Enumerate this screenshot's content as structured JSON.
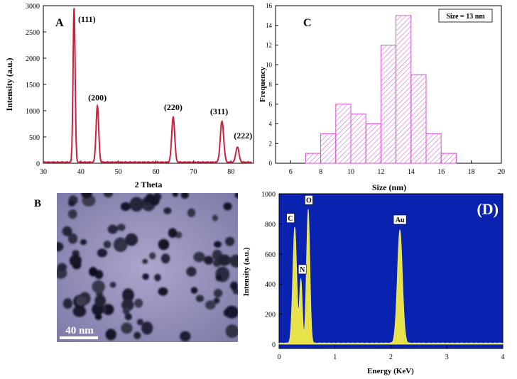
{
  "chart_data": [
    {
      "type": "line",
      "panel_label": "A",
      "xlabel": "2 Theta",
      "ylabel": "Intensity (a.u.)",
      "xlim": [
        30,
        86
      ],
      "ylim": [
        0,
        3000
      ],
      "xticks": [
        30,
        40,
        50,
        60,
        70,
        80
      ],
      "yticks": [
        0,
        500,
        1000,
        1500,
        2000,
        2500,
        3000
      ],
      "color": "#cc1f3c",
      "peaks": [
        {
          "x": 38.2,
          "y": 2960,
          "label": "(111)"
        },
        {
          "x": 44.4,
          "y": 1090,
          "label": "(200)"
        },
        {
          "x": 64.6,
          "y": 880,
          "label": "(220)"
        },
        {
          "x": 77.6,
          "y": 800,
          "label": "(311)"
        },
        {
          "x": 81.7,
          "y": 310,
          "label": "(222)"
        }
      ],
      "baseline": 20
    },
    {
      "type": "bar",
      "panel_label": "C",
      "xlabel": "Size (nm)",
      "ylabel": "Frequency",
      "legend": "Size = 13 nm",
      "xlim": [
        5,
        20
      ],
      "ylim": [
        0,
        16
      ],
      "xticks": [
        6,
        8,
        10,
        12,
        14,
        16,
        18,
        20
      ],
      "yticks": [
        0,
        2,
        4,
        6,
        8,
        10,
        12,
        14,
        16
      ],
      "bin_width": 1,
      "bins": [
        {
          "center": 7.5,
          "value": 1
        },
        {
          "center": 8.5,
          "value": 3
        },
        {
          "center": 9.5,
          "value": 6
        },
        {
          "center": 10.5,
          "value": 5
        },
        {
          "center": 11.5,
          "value": 4
        },
        {
          "center": 12.5,
          "value": 12
        },
        {
          "center": 13.5,
          "value": 15
        },
        {
          "center": 14.5,
          "value": 9
        },
        {
          "center": 15.5,
          "value": 3
        },
        {
          "center": 16.5,
          "value": 1
        }
      ],
      "color": "#d44fd4"
    },
    {
      "type": "area",
      "panel_label": "(D)",
      "xlabel": "Energy (KeV)",
      "ylabel": "Intensity (a.u.)",
      "xlim": [
        0,
        4
      ],
      "ylim": [
        0,
        1000
      ],
      "xticks": [
        0,
        1,
        2,
        3,
        4
      ],
      "yticks": [
        0,
        200,
        400,
        600,
        800,
        1000
      ],
      "background": "#0a22b0",
      "fill": "#e8e24a",
      "peaks": [
        {
          "x": 0.28,
          "y": 770,
          "label": "C"
        },
        {
          "x": 0.39,
          "y": 420,
          "label": "N"
        },
        {
          "x": 0.52,
          "y": 890,
          "label": "O"
        },
        {
          "x": 2.16,
          "y": 750,
          "label": "Au"
        }
      ]
    }
  ],
  "micrograph": {
    "panel_label": "B",
    "scale_bar": "40 nm"
  }
}
